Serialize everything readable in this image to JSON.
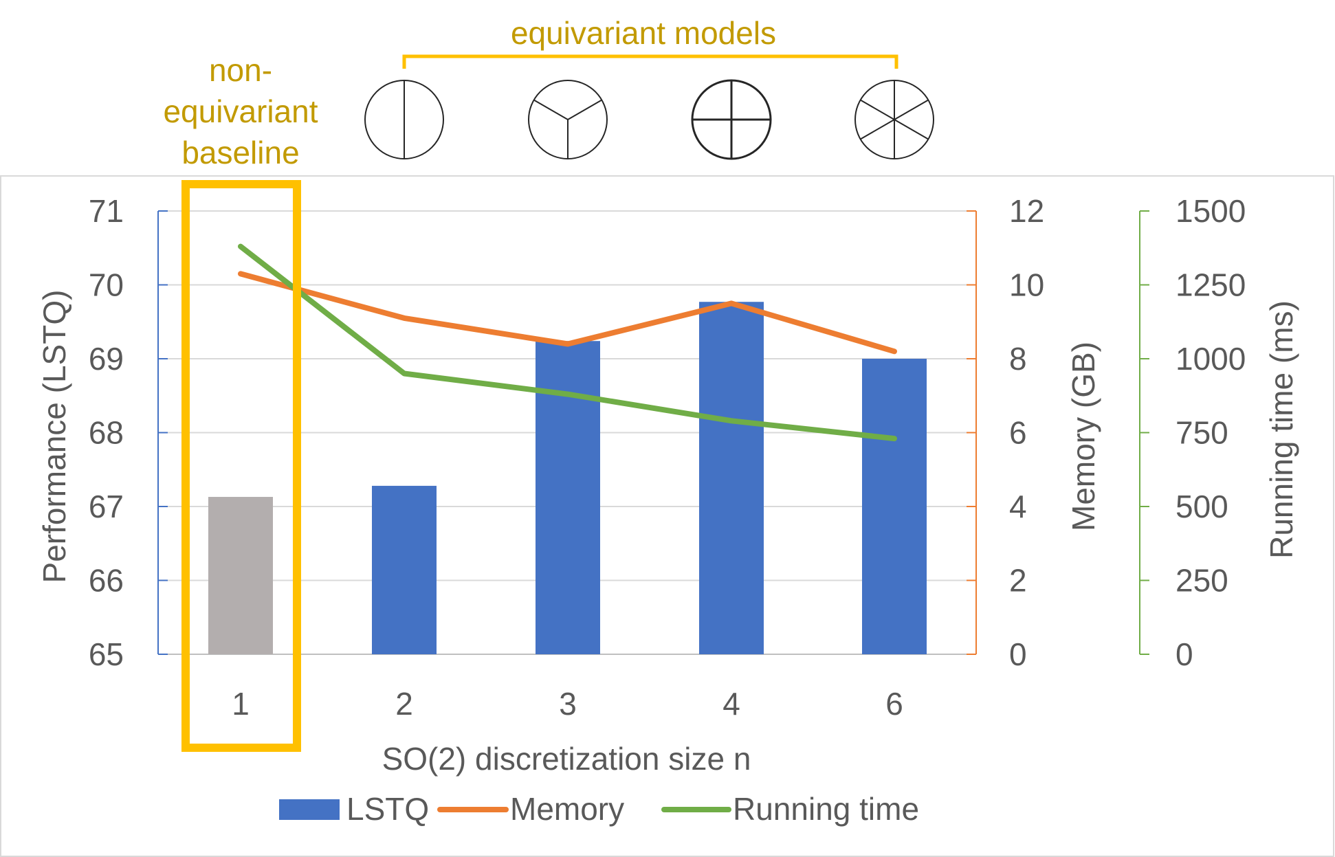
{
  "annotations": {
    "baseline_label": [
      "non-",
      "equivariant",
      "baseline"
    ],
    "equivariant_label": "equivariant models"
  },
  "icons": [
    {
      "name": "so2-n2-icon",
      "spokes": 2
    },
    {
      "name": "so2-n3-icon",
      "spokes": 3
    },
    {
      "name": "so2-n4-icon",
      "spokes": 4
    },
    {
      "name": "so2-n6-icon",
      "spokes": 6
    }
  ],
  "chart_data": {
    "type": "bar",
    "xlabel": "SO(2) discretization size n",
    "categories": [
      "1",
      "2",
      "3",
      "4",
      "6"
    ],
    "series": [
      {
        "name": "LSTQ",
        "type": "bar",
        "axis": "left",
        "color": "#4472C4",
        "baseline_color": "#B3AEAE",
        "values": [
          67.13,
          67.28,
          69.24,
          69.77,
          69.0
        ]
      },
      {
        "name": "Memory",
        "type": "line",
        "axis": "right1",
        "color": "#ED7D31",
        "values": [
          10.3,
          9.1,
          8.4,
          9.5,
          8.2
        ]
      },
      {
        "name": "Running time",
        "type": "line",
        "axis": "right2",
        "color": "#70AD47",
        "values": [
          1380,
          950,
          880,
          790,
          730
        ]
      }
    ],
    "axes": {
      "left": {
        "label": "Performance (LSTQ)",
        "ylim": [
          65,
          71
        ],
        "ticks": [
          "65",
          "66",
          "67",
          "68",
          "69",
          "70",
          "71"
        ],
        "color": "#4472C4"
      },
      "right1": {
        "label": "Memory (GB)",
        "ylim": [
          0,
          12
        ],
        "ticks": [
          "0",
          "2",
          "4",
          "6",
          "8",
          "10",
          "12"
        ],
        "color": "#ED7D31"
      },
      "right2": {
        "label": "Running time (ms)",
        "ylim": [
          0,
          1500
        ],
        "ticks": [
          "0",
          "250",
          "500",
          "750",
          "1000",
          "1250",
          "1500"
        ],
        "color": "#70AD47"
      }
    },
    "grid": true,
    "highlight": {
      "category": "1",
      "color": "#FFC000"
    },
    "legend": {
      "placement": "bottom",
      "entries": [
        "LSTQ",
        "Memory",
        "Running time"
      ]
    }
  }
}
